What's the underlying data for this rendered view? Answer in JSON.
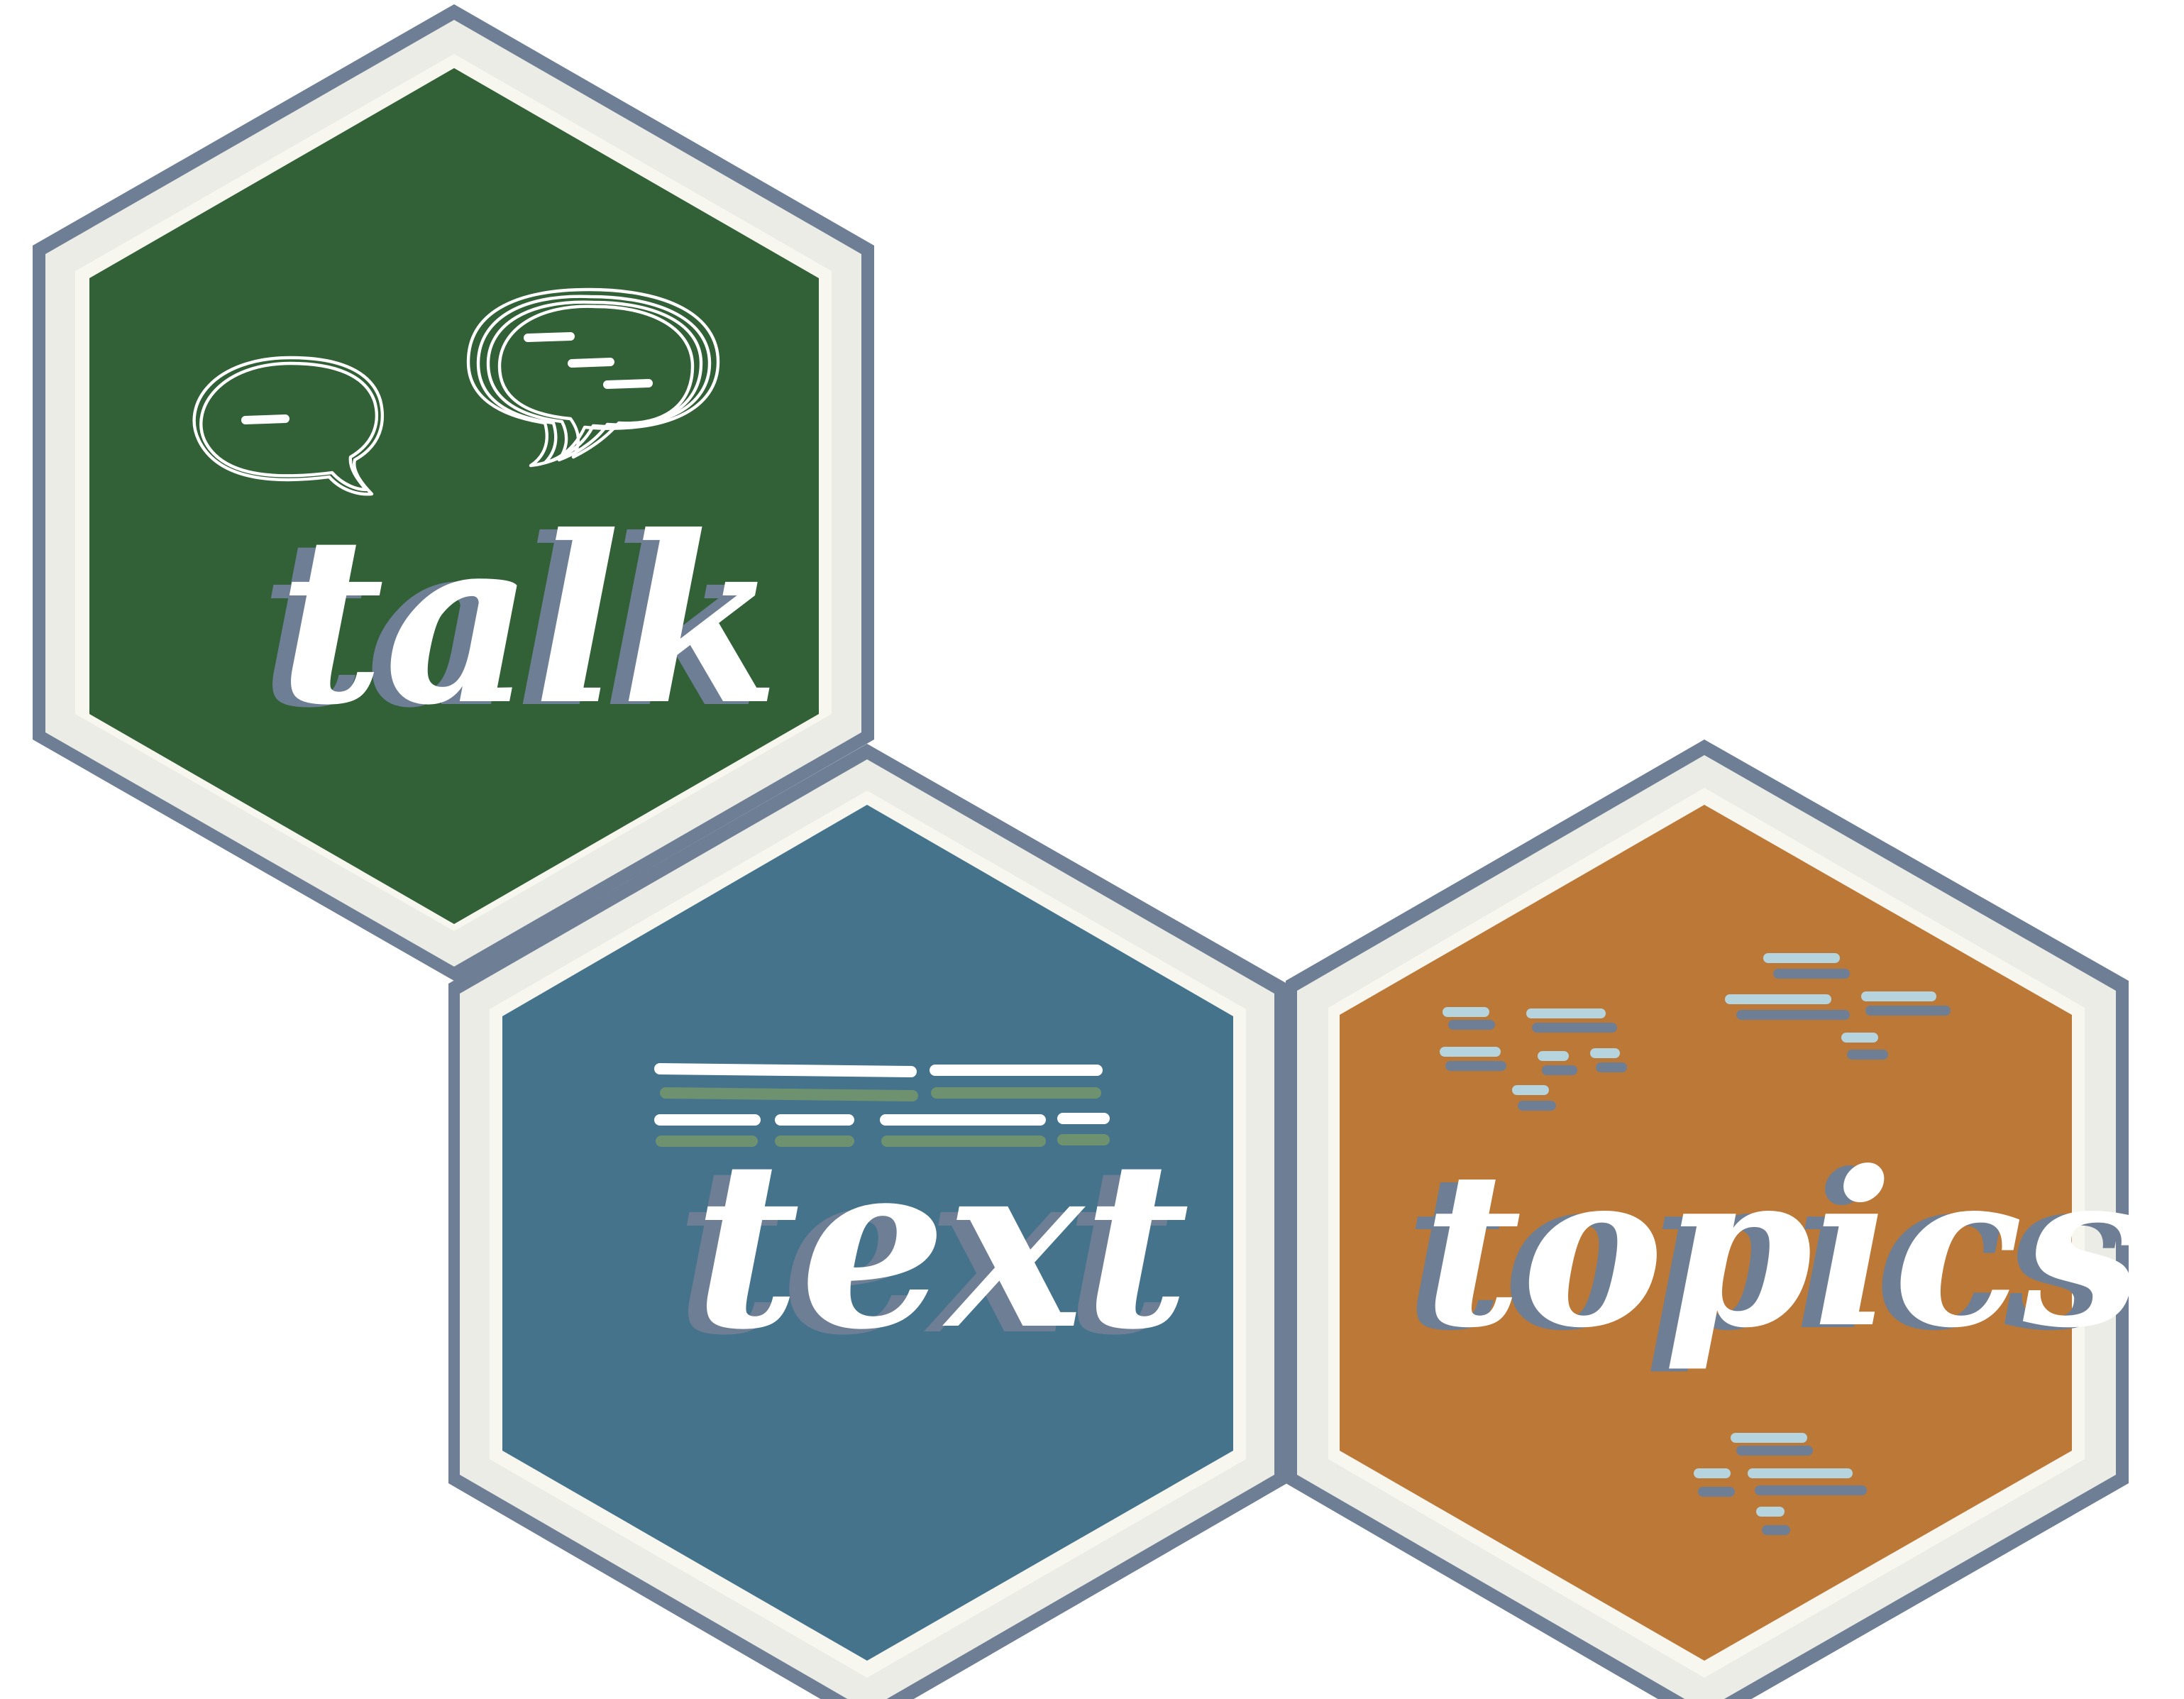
{
  "hexes": [
    {
      "id": "talk",
      "word": "talk",
      "fill_color": "#326037",
      "icon": "speech-bubbles-icon"
    },
    {
      "id": "text",
      "word": "text",
      "fill_color": "#45738C",
      "icon": "text-lines-icon"
    },
    {
      "id": "topics",
      "word": "topics",
      "fill_color": "#BB7837",
      "icon": "dash-clusters-icon"
    }
  ],
  "colors": {
    "outline": "#6E7F95",
    "frame": "#ECECE6",
    "inner_line": "#F7F6EF",
    "shadow": "#6E7F95",
    "text": "#FFFFFF",
    "text_line_accent": "#6E9270",
    "dash_light": "#B5D4DE",
    "dash_dark": "#6E7F95"
  }
}
